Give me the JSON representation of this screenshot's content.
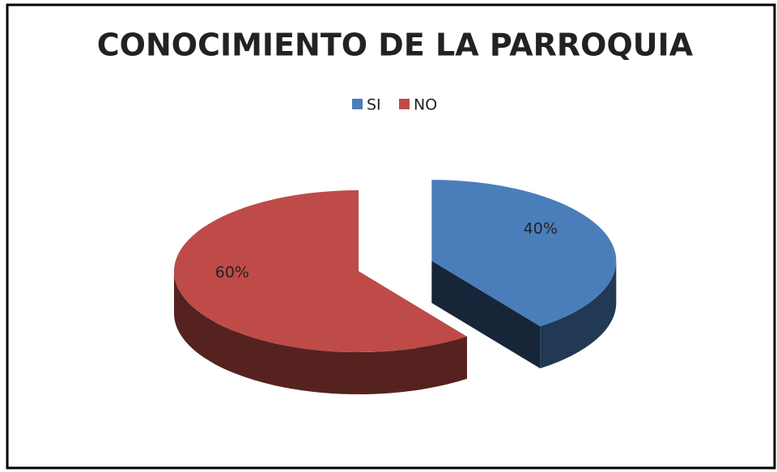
{
  "chart_data": {
    "type": "pie",
    "title": "CONOCIMIENTO DE LA PARROQUIA",
    "categories": [
      "SI",
      "NO"
    ],
    "values": [
      40,
      60
    ],
    "value_labels": [
      "40%",
      "60%"
    ],
    "colors": [
      "#4a7ebb",
      "#be4b48"
    ],
    "legend": "top"
  }
}
